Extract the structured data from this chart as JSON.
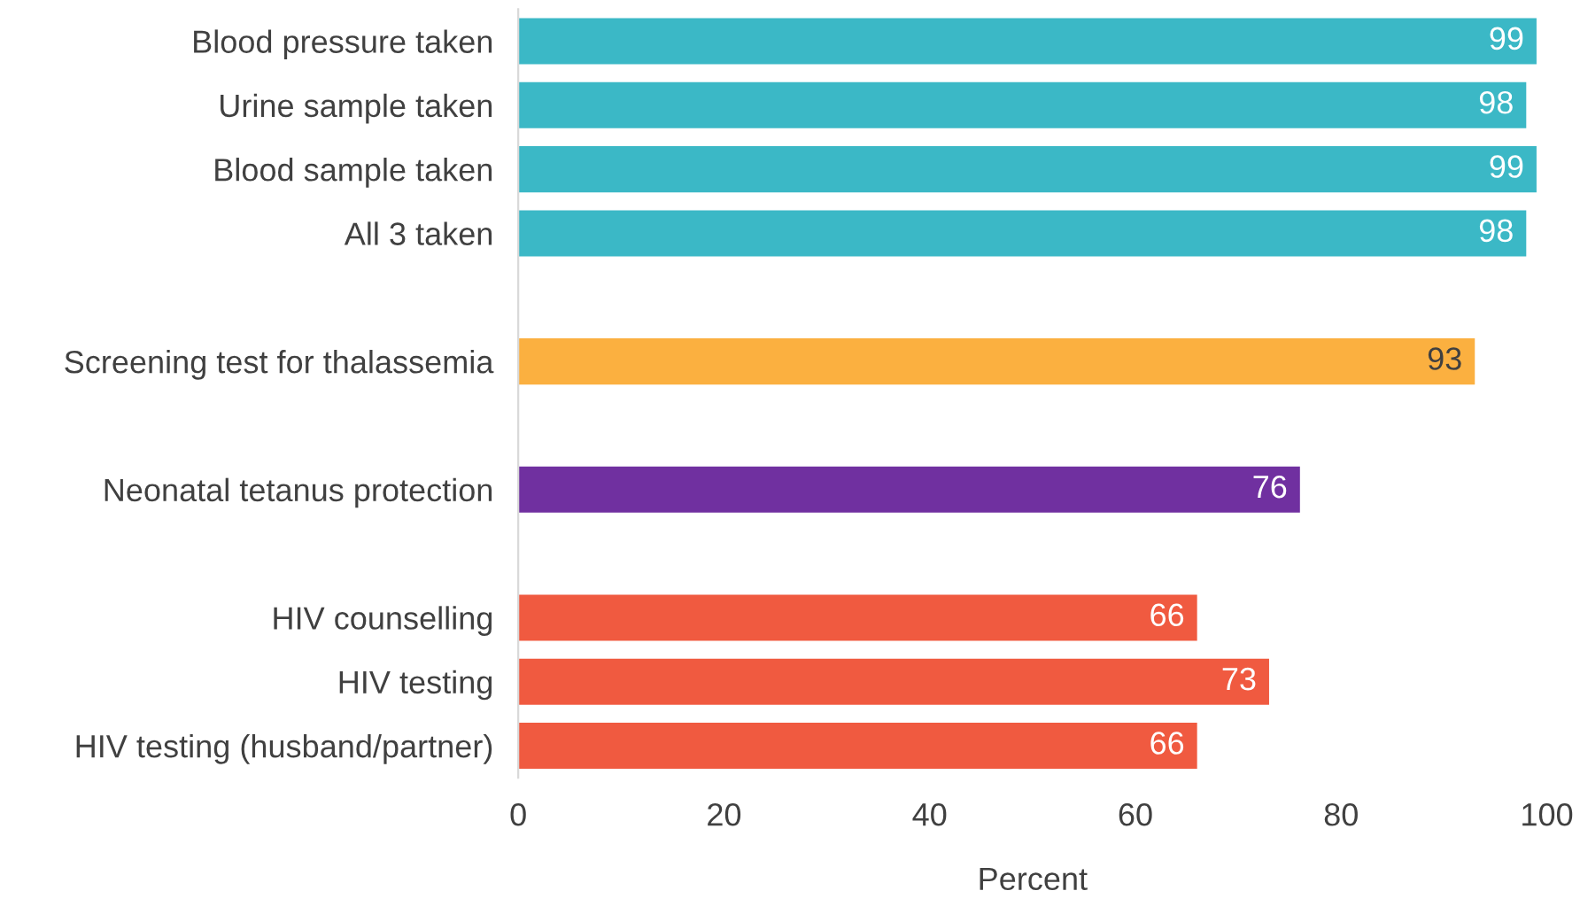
{
  "chart_data": {
    "type": "bar",
    "orientation": "horizontal",
    "categories": [
      "Blood pressure taken",
      "Urine sample taken",
      "Blood sample taken",
      "All 3 taken",
      null,
      "Screening test for thalassemia",
      null,
      "Neonatal tetanus protection",
      null,
      "HIV counselling",
      "HIV testing",
      "HIV testing (husband/partner)"
    ],
    "values": [
      99,
      98,
      99,
      98,
      null,
      93,
      null,
      76,
      null,
      66,
      73,
      66
    ],
    "colors": [
      "#3bb8c6",
      "#3bb8c6",
      "#3bb8c6",
      "#3bb8c6",
      null,
      "#fbb040",
      null,
      "#7030a0",
      null,
      "#f05a40",
      "#f05a40",
      "#f05a40"
    ],
    "xlim": [
      0,
      100
    ],
    "xticks": [
      0,
      20,
      40,
      60,
      80,
      100
    ],
    "xlabel": "Percent",
    "data_labels": true,
    "grid": false
  }
}
